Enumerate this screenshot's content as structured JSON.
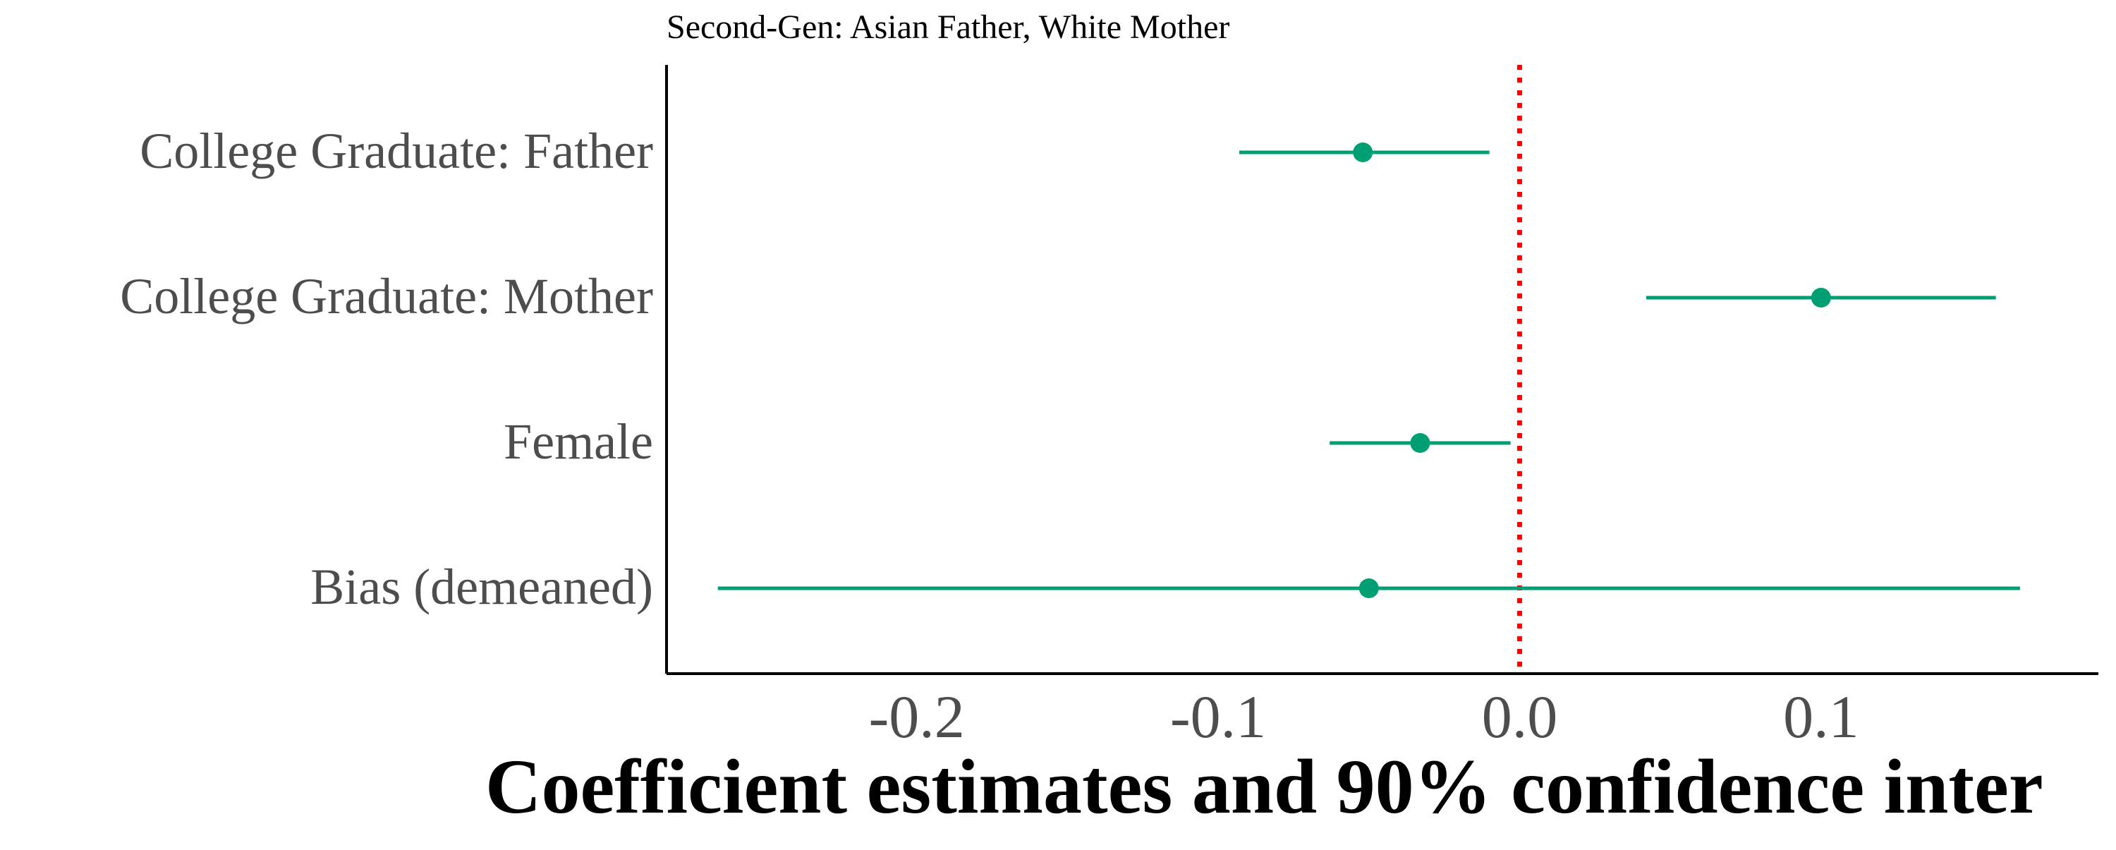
{
  "chart_data": {
    "type": "scatter",
    "subtitle": "Second-Gen: Asian Father, White Mother",
    "xlabel": "Coefficient estimates and 90% confidence inter",
    "xlim": [
      -0.283,
      0.192
    ],
    "x_ticks": [
      {
        "value": -0.2,
        "label": "-0.2"
      },
      {
        "value": -0.1,
        "label": "-0.1"
      },
      {
        "value": 0.0,
        "label": "0.0"
      },
      {
        "value": 0.1,
        "label": "0.1"
      }
    ],
    "reference_line": {
      "x": 0.0,
      "style": "dotted",
      "color": "#ff0000"
    },
    "point_color": "#009e73",
    "grid": false,
    "legend": "none",
    "categories": [
      "College Graduate: Father",
      "College Graduate: Mother",
      "Female",
      "Bias (demeaned)"
    ],
    "estimates": [
      -0.052,
      0.1,
      -0.033,
      -0.05
    ],
    "ci_low": [
      -0.093,
      0.042,
      -0.063,
      -0.266
    ],
    "ci_high": [
      -0.01,
      0.158,
      -0.003,
      0.166
    ]
  }
}
